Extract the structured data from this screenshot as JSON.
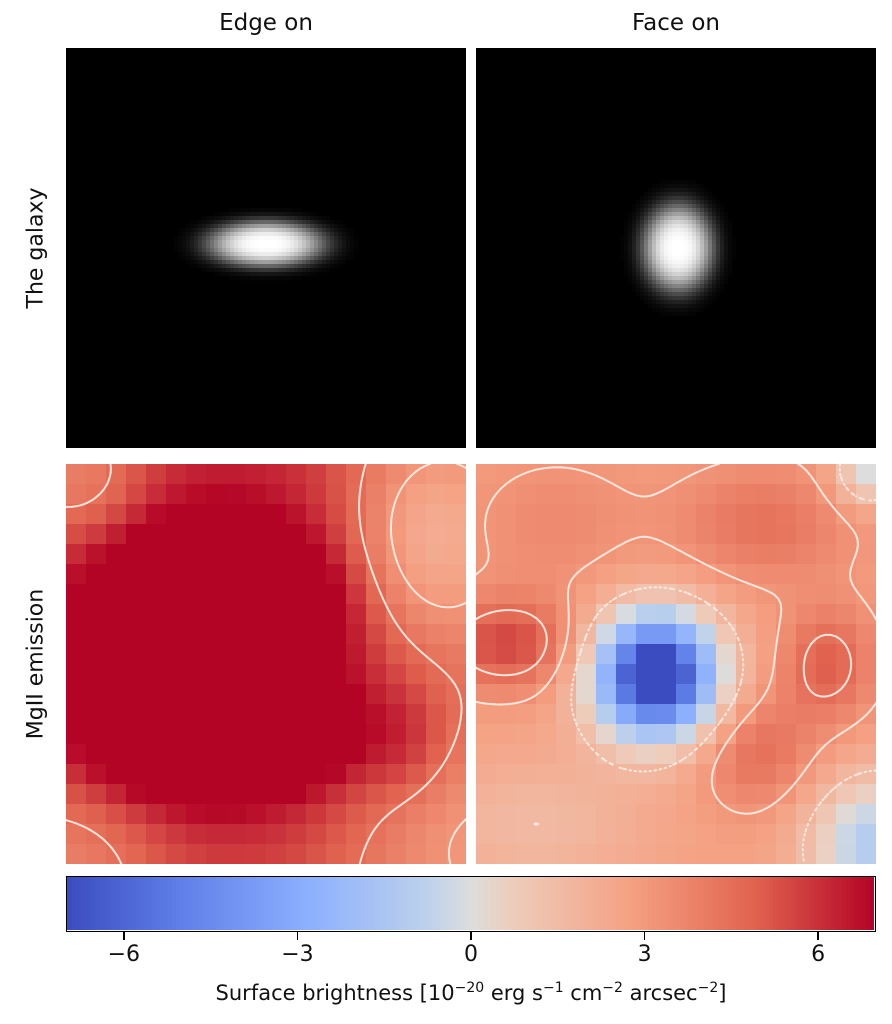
{
  "chart_data": {
    "type": "heatmap",
    "columns": [
      "Edge on",
      "Face on"
    ],
    "rows": [
      "The galaxy",
      "MgII emission"
    ],
    "colorbar": {
      "colormap": "coolwarm",
      "vmin": -7,
      "vmax": 7,
      "ticks": [
        -6,
        -3,
        0,
        3,
        6
      ],
      "tick_labels": [
        "−6",
        "−3",
        "0",
        "3",
        "6"
      ],
      "label_prefix": "Surface brightness [10",
      "label_exponent": "−20",
      "label_units_1": " erg s",
      "label_exp2": "−1",
      "label_units_2": " cm",
      "label_exp3": "−2",
      "label_units_3": " arcsec",
      "label_exp4": "−2",
      "label_suffix": "]"
    },
    "panels": [
      {
        "id": "edge-galaxy",
        "kind": "image",
        "shape": "ellipse",
        "center": [
          0.5,
          0.49
        ],
        "semi_axes": [
          0.14,
          0.055
        ],
        "peak": 1.0
      },
      {
        "id": "face-galaxy",
        "kind": "image",
        "shape": "ellipse",
        "center": [
          0.505,
          0.5
        ],
        "semi_axes": [
          0.085,
          0.105
        ],
        "peak": 1.0
      },
      {
        "id": "edge-mgii",
        "kind": "emission",
        "baseline": 2.0,
        "components": [
          {
            "c": [
              0.26,
              0.28
            ],
            "s": [
              0.9,
              0.9
            ],
            "a": 3.0
          },
          {
            "c": [
              0.5,
              0.55
            ],
            "s": [
              0.5,
              0.9
            ],
            "a": 1.5
          },
          {
            "c": [
              0.33,
              0.35
            ],
            "s": [
              0.15,
              0.12
            ],
            "a": 4.8
          },
          {
            "c": [
              0.5,
              0.35
            ],
            "s": [
              0.12,
              0.1
            ],
            "a": 2.5
          },
          {
            "c": [
              0.3,
              0.68
            ],
            "s": [
              0.15,
              0.09
            ],
            "a": 5.0
          },
          {
            "c": [
              0.55,
              0.68
            ],
            "s": [
              0.12,
              0.08
            ],
            "a": 2.8
          },
          {
            "c": [
              0.35,
              0.52
            ],
            "s": [
              0.3,
              0.25
            ],
            "a": 2.2
          },
          {
            "c": [
              0.48,
              0.52
            ],
            "s": [
              0.06,
              0.05
            ],
            "a": -2.5
          },
          {
            "c": [
              0.9,
              0.2
            ],
            "s": [
              0.15,
              0.2
            ],
            "a": -3.2
          },
          {
            "c": [
              0.05,
              0.05
            ],
            "s": [
              0.12,
              0.12
            ],
            "a": -1.8
          },
          {
            "c": [
              0.95,
              0.9
            ],
            "s": [
              0.2,
              0.2
            ],
            "a": -1.5
          },
          {
            "c": [
              0.05,
              0.95
            ],
            "s": [
              0.15,
              0.15
            ],
            "a": -1.2
          },
          {
            "c": [
              0.85,
              0.7
            ],
            "s": [
              0.08,
              0.1
            ],
            "a": 1.2
          }
        ]
      },
      {
        "id": "face-mgii",
        "kind": "emission",
        "baseline": 2.8,
        "components": [
          {
            "c": [
              0.45,
              0.53
            ],
            "s": [
              0.11,
              0.11
            ],
            "a": -10.5
          },
          {
            "c": [
              0.45,
              0.53
            ],
            "s": [
              0.05,
              0.05
            ],
            "a": -2.0
          },
          {
            "c": [
              0.08,
              0.45
            ],
            "s": [
              0.12,
              0.08
            ],
            "a": 2.8
          },
          {
            "c": [
              0.88,
              0.5
            ],
            "s": [
              0.08,
              0.1
            ],
            "a": 2.2
          },
          {
            "c": [
              0.72,
              0.15
            ],
            "s": [
              0.15,
              0.1
            ],
            "a": 1.6
          },
          {
            "c": [
              0.7,
              0.72
            ],
            "s": [
              0.1,
              0.1
            ],
            "a": 1.8
          },
          {
            "c": [
              1.0,
              0.95
            ],
            "s": [
              0.12,
              0.12
            ],
            "a": -4.0
          },
          {
            "c": [
              0.98,
              0.02
            ],
            "s": [
              0.06,
              0.06
            ],
            "a": -3.0
          },
          {
            "c": [
              0.15,
              0.9
            ],
            "s": [
              0.2,
              0.12
            ],
            "a": -1.2
          },
          {
            "c": [
              0.2,
              0.15
            ],
            "s": [
              0.15,
              0.12
            ],
            "a": 0.8
          }
        ]
      }
    ],
    "contours": {
      "solid": 4.5,
      "dashed": 3.2,
      "dotted": 1.6
    }
  }
}
